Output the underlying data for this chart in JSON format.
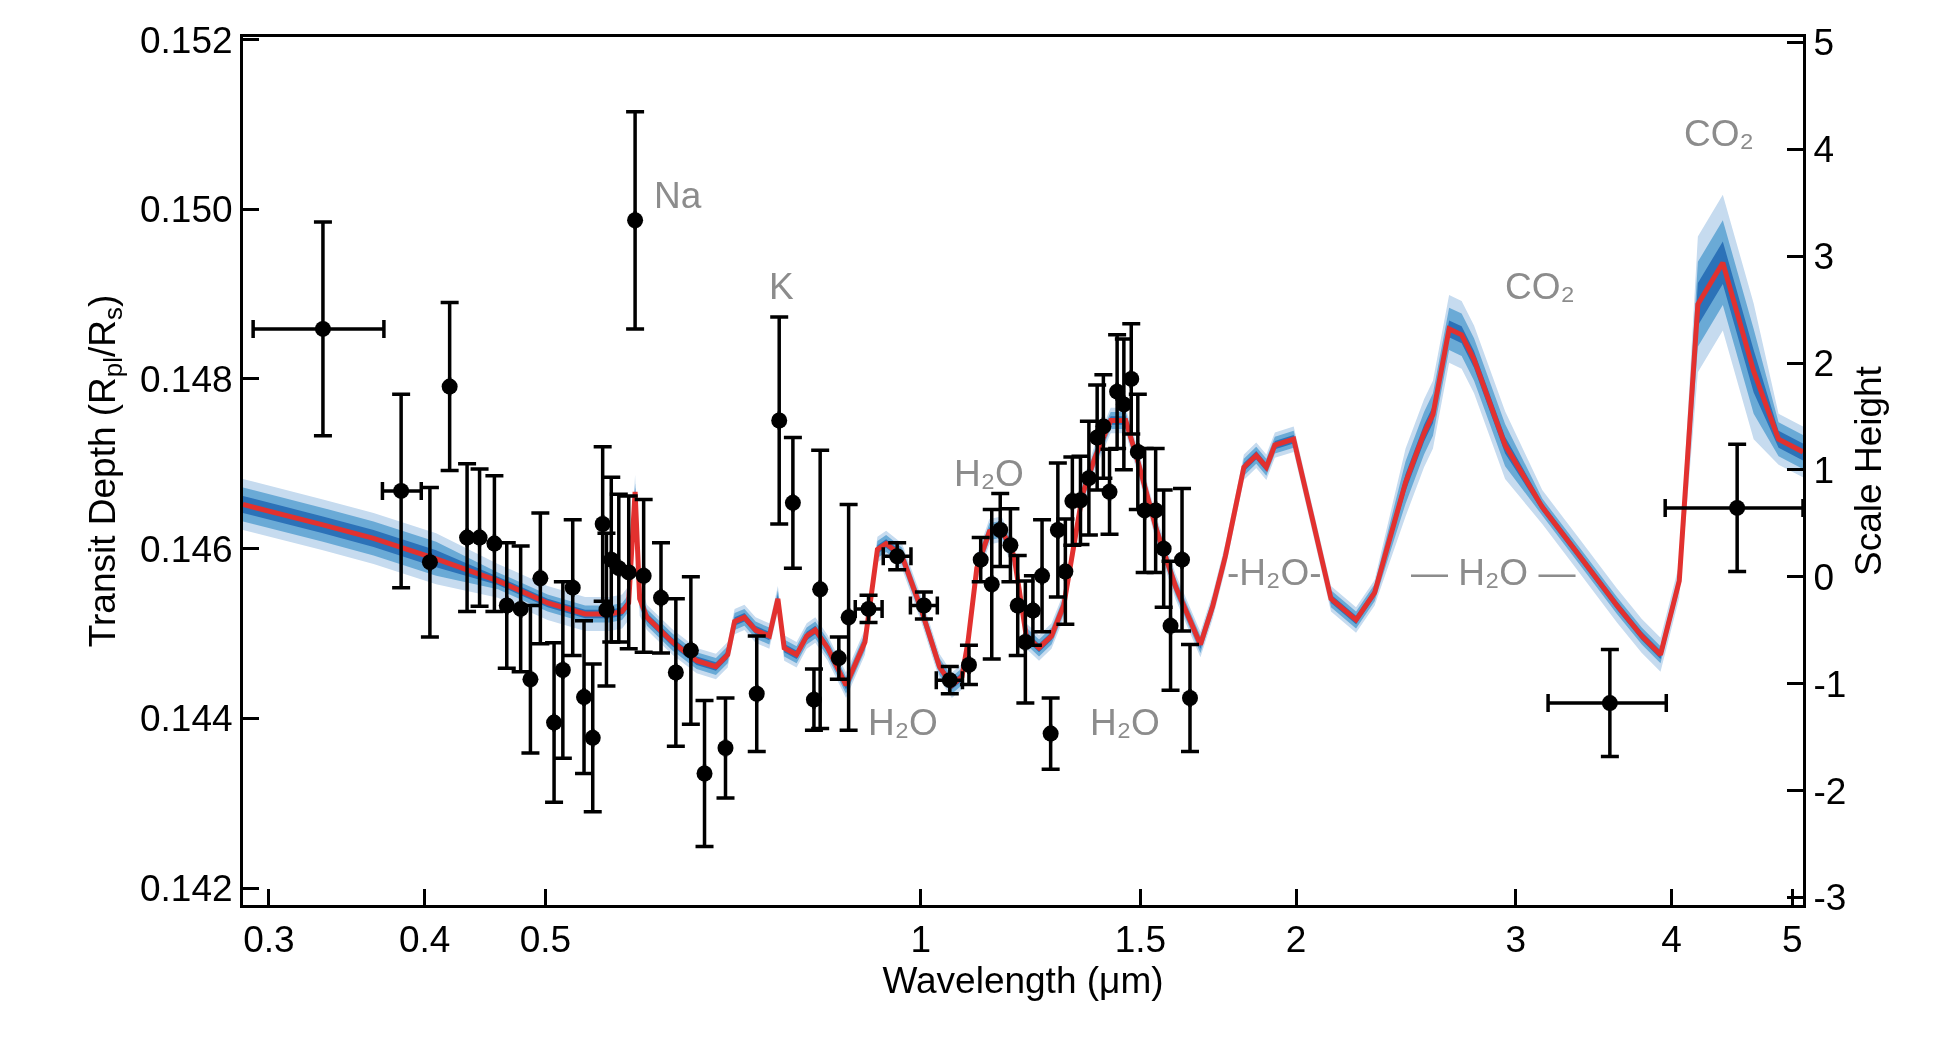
{
  "chart_data": {
    "type": "scatter",
    "xlabel": "Wavelength (μm)",
    "ylabel": "Transit Depth (R$_{pl}$/R$_{s}$)",
    "y2label": "Scale Height",
    "log": "x",
    "marker": "circle",
    "xlim": [
      0.286,
      5.1
    ],
    "xticks": [
      0.3,
      0.4,
      0.5,
      1,
      1.5,
      2,
      3,
      4,
      5
    ],
    "ylim": [
      0.1418,
      0.15203
    ],
    "yticks": [
      0.142,
      0.144,
      0.146,
      0.148,
      {
        "value": 0.15,
        "label": "0.150"
      },
      0.152
    ],
    "y2lim": [
      -3.07,
      5.05
    ],
    "y2ticks": [
      -3,
      -2,
      -1,
      0,
      1,
      2,
      3,
      4,
      5
    ],
    "x": [
      0.286,
      0.3315,
      0.364,
      0.4086,
      0.458,
      0.502,
      0.538,
      0.563,
      0.576,
      0.583,
      0.59,
      0.595,
      0.603,
      0.632,
      0.661,
      0.685,
      0.7,
      0.709,
      0.722,
      0.737,
      0.756,
      0.768,
      0.777,
      0.795,
      0.81,
      0.823,
      0.842,
      0.871,
      0.902,
      0.923,
      0.938,
      0.966,
      1.0,
      1.035,
      1.059,
      1.079,
      1.091,
      1.109,
      1.135,
      1.161,
      1.188,
      1.215,
      1.244,
      1.273,
      1.302,
      1.348,
      1.379,
      1.42,
      1.46,
      1.495,
      1.547,
      1.601,
      1.676,
      1.715,
      1.755,
      1.816,
      1.858,
      1.893,
      1.923,
      1.991,
      2.061,
      2.133,
      2.234,
      2.312,
      2.448,
      2.533,
      2.575,
      2.653,
      2.715,
      2.778,
      2.942,
      3.151,
      3.377,
      3.617,
      3.787,
      3.92,
      4.058,
      4.2,
      4.398,
      4.656,
      4.875,
      5.1
    ],
    "series": [
      {
        "type": "line",
        "color": "#c6dbef",
        "values": [
          null,
          null,
          null,
          null,
          null,
          null,
          null,
          null,
          null,
          null,
          null,
          null,
          null,
          null,
          null,
          null,
          null,
          null,
          null,
          null,
          null,
          null,
          null,
          null,
          null,
          null,
          null,
          null,
          null,
          null,
          null,
          null,
          null,
          null,
          null,
          null,
          null,
          null,
          null,
          null,
          null,
          null,
          null,
          null,
          null,
          null,
          null,
          null,
          null,
          null,
          null,
          null,
          null,
          null,
          null,
          null,
          null,
          null,
          null,
          null,
          null,
          null,
          null,
          null,
          null,
          null,
          null,
          null,
          null,
          null,
          null,
          null,
          null,
          null,
          null,
          null,
          null,
          null,
          null,
          null,
          null,
          null
        ],
        "lower": [
          0.14622,
          0.14598,
          0.14582,
          0.14558,
          0.14542,
          0.14516,
          0.14503,
          0.14503,
          0.14506,
          0.14516,
          0.14647,
          0.14521,
          0.14504,
          0.14475,
          0.14453,
          0.14446,
          0.1446,
          0.14499,
          0.14504,
          0.14489,
          0.14482,
          0.14526,
          0.14468,
          0.1446,
          0.14482,
          0.14489,
          0.14468,
          0.14424,
          0.14475,
          0.14584,
          0.14591,
          0.14576,
          0.14515,
          0.14446,
          0.14424,
          0.14434,
          0.14475,
          0.14562,
          0.14605,
          0.14608,
          0.14576,
          0.14482,
          0.14468,
          0.14482,
          0.14518,
          0.14649,
          0.14692,
          0.14736,
          0.14736,
          0.14685,
          0.14605,
          0.1454,
          0.14472,
          0.14518,
          0.14576,
          0.14681,
          0.14695,
          0.14681,
          0.14707,
          0.14714,
          0.1462,
          0.14526,
          0.14501,
          0.14533,
          0.14638,
          0.14696,
          0.14718,
          0.14819,
          0.14812,
          0.14783,
          0.14682,
          0.14629,
          0.14571,
          0.14513,
          0.14477,
          0.14455,
          0.14542,
          0.14808,
          0.14857,
          0.14729,
          0.14699,
          0.14684
        ],
        "upper": [
          0.14682,
          0.14658,
          0.14642,
          0.14618,
          0.14582,
          0.14556,
          0.14543,
          0.14543,
          0.14546,
          0.14556,
          0.14687,
          0.14561,
          0.14534,
          0.14505,
          0.14483,
          0.14476,
          0.1449,
          0.14529,
          0.14534,
          0.14519,
          0.14512,
          0.14556,
          0.14498,
          0.1449,
          0.14512,
          0.14519,
          0.14498,
          0.14454,
          0.14505,
          0.14614,
          0.14621,
          0.14606,
          0.14545,
          0.14476,
          0.14454,
          0.14464,
          0.14505,
          0.14592,
          0.14635,
          0.14638,
          0.14606,
          0.14512,
          0.14498,
          0.14512,
          0.14548,
          0.14679,
          0.14722,
          0.14766,
          0.14766,
          0.14715,
          0.14635,
          0.1457,
          0.14502,
          0.14548,
          0.14606,
          0.14711,
          0.14725,
          0.14711,
          0.14737,
          0.14744,
          0.1465,
          0.14556,
          0.14531,
          0.14563,
          0.14718,
          0.14776,
          0.14798,
          0.14899,
          0.14892,
          0.14863,
          0.14762,
          0.14669,
          0.14611,
          0.14553,
          0.14517,
          0.14495,
          0.14582,
          0.14968,
          0.15017,
          0.14889,
          0.14759,
          0.14744
        ]
      },
      {
        "type": "line",
        "color": "#6aaad6",
        "values": [
          null,
          null,
          null,
          null,
          null,
          null,
          null,
          null,
          null,
          null,
          null,
          null,
          null,
          null,
          null,
          null,
          null,
          null,
          null,
          null,
          null,
          null,
          null,
          null,
          null,
          null,
          null,
          null,
          null,
          null,
          null,
          null,
          null,
          null,
          null,
          null,
          null,
          null,
          null,
          null,
          null,
          null,
          null,
          null,
          null,
          null,
          null,
          null,
          null,
          null,
          null,
          null,
          null,
          null,
          null,
          null,
          null,
          null,
          null,
          null,
          null,
          null,
          null,
          null,
          null,
          null,
          null,
          null,
          null,
          null,
          null,
          null,
          null,
          null,
          null,
          null,
          null,
          null,
          null,
          null,
          null,
          null
        ],
        "lower": [
          0.14632,
          0.14608,
          0.14592,
          0.14568,
          0.14552,
          0.14526,
          0.14513,
          0.14513,
          0.14516,
          0.14526,
          0.14657,
          0.14531,
          0.14509,
          0.1448,
          0.14458,
          0.14451,
          0.14465,
          0.14504,
          0.14509,
          0.14494,
          0.14487,
          0.14531,
          0.14473,
          0.14465,
          0.14487,
          0.14494,
          0.14473,
          0.14429,
          0.1448,
          0.14589,
          0.14596,
          0.14581,
          0.1452,
          0.14451,
          0.14429,
          0.14439,
          0.1448,
          0.14567,
          0.1461,
          0.14613,
          0.14581,
          0.14487,
          0.14473,
          0.14487,
          0.14523,
          0.14654,
          0.14697,
          0.14741,
          0.14741,
          0.1469,
          0.1461,
          0.14545,
          0.14477,
          0.14523,
          0.14581,
          0.14686,
          0.147,
          0.14686,
          0.14712,
          0.14719,
          0.14625,
          0.14531,
          0.14506,
          0.14538,
          0.14653,
          0.14711,
          0.14733,
          0.14834,
          0.14827,
          0.14798,
          0.14697,
          0.14639,
          0.14581,
          0.14523,
          0.14487,
          0.14465,
          0.14552,
          0.14838,
          0.14887,
          0.14759,
          0.14709,
          0.14694
        ],
        "upper": [
          0.14672,
          0.14648,
          0.14632,
          0.14608,
          0.14572,
          0.14546,
          0.14533,
          0.14533,
          0.14536,
          0.14546,
          0.14677,
          0.14551,
          0.14529,
          0.145,
          0.14478,
          0.14471,
          0.14485,
          0.14524,
          0.14529,
          0.14514,
          0.14507,
          0.14551,
          0.14493,
          0.14485,
          0.14507,
          0.14514,
          0.14493,
          0.14449,
          0.145,
          0.14609,
          0.14616,
          0.14601,
          0.1454,
          0.14471,
          0.14449,
          0.14459,
          0.145,
          0.14587,
          0.1463,
          0.14633,
          0.14601,
          0.14507,
          0.14493,
          0.14507,
          0.14543,
          0.14674,
          0.14717,
          0.14761,
          0.14761,
          0.1471,
          0.1463,
          0.14565,
          0.14497,
          0.14543,
          0.14601,
          0.14706,
          0.1472,
          0.14706,
          0.14732,
          0.14739,
          0.14645,
          0.14551,
          0.14526,
          0.14558,
          0.14703,
          0.14761,
          0.14783,
          0.14884,
          0.14877,
          0.14848,
          0.14747,
          0.14659,
          0.14601,
          0.14543,
          0.14507,
          0.14485,
          0.14572,
          0.14938,
          0.14987,
          0.14859,
          0.14749,
          0.14734
        ]
      },
      {
        "type": "line",
        "color": "#2c72b8",
        "values": [
          null,
          null,
          null,
          null,
          null,
          null,
          null,
          null,
          null,
          null,
          null,
          null,
          null,
          null,
          null,
          null,
          null,
          null,
          null,
          null,
          null,
          null,
          null,
          null,
          null,
          null,
          null,
          null,
          null,
          null,
          null,
          null,
          null,
          null,
          null,
          null,
          null,
          null,
          null,
          null,
          null,
          null,
          null,
          null,
          null,
          null,
          null,
          null,
          null,
          null,
          null,
          null,
          null,
          null,
          null,
          null,
          null,
          null,
          null,
          null,
          null,
          null,
          null,
          null,
          null,
          null,
          null,
          null,
          null,
          null,
          null,
          null,
          null,
          null,
          null,
          null,
          null,
          null,
          null,
          null,
          null,
          null
        ],
        "lower": [
          0.14642,
          0.14618,
          0.14602,
          0.14578,
          0.14557,
          0.14531,
          0.14518,
          0.14518,
          0.14521,
          0.14531,
          0.14662,
          0.14536,
          0.14514,
          0.14485,
          0.14463,
          0.14456,
          0.1447,
          0.14509,
          0.14514,
          0.14499,
          0.14492,
          0.14536,
          0.14478,
          0.1447,
          0.14492,
          0.14499,
          0.14478,
          0.14434,
          0.14485,
          0.14594,
          0.14601,
          0.14586,
          0.14525,
          0.14456,
          0.14434,
          0.14444,
          0.14485,
          0.14572,
          0.14615,
          0.14618,
          0.14586,
          0.14492,
          0.14478,
          0.14492,
          0.14528,
          0.14659,
          0.14702,
          0.14746,
          0.14746,
          0.14695,
          0.14615,
          0.1455,
          0.14482,
          0.14528,
          0.14586,
          0.14691,
          0.14705,
          0.14691,
          0.14717,
          0.14724,
          0.1463,
          0.14536,
          0.14511,
          0.14543,
          0.14668,
          0.14726,
          0.14748,
          0.14849,
          0.14842,
          0.14813,
          0.14712,
          0.14644,
          0.14586,
          0.14528,
          0.14492,
          0.1447,
          0.14557,
          0.14863,
          0.14912,
          0.14784,
          0.14719,
          0.14704
        ],
        "upper": [
          0.14662,
          0.14638,
          0.14622,
          0.14598,
          0.14567,
          0.14541,
          0.14528,
          0.14528,
          0.14531,
          0.14541,
          0.14672,
          0.14546,
          0.14524,
          0.14495,
          0.14473,
          0.14466,
          0.1448,
          0.14519,
          0.14524,
          0.14509,
          0.14502,
          0.14546,
          0.14488,
          0.1448,
          0.14502,
          0.14509,
          0.14488,
          0.14444,
          0.14495,
          0.14604,
          0.14611,
          0.14596,
          0.14535,
          0.14466,
          0.14444,
          0.14454,
          0.14495,
          0.14582,
          0.14625,
          0.14628,
          0.14596,
          0.14502,
          0.14488,
          0.14502,
          0.14538,
          0.14669,
          0.14712,
          0.14756,
          0.14756,
          0.14705,
          0.14625,
          0.1456,
          0.14492,
          0.14538,
          0.14596,
          0.14701,
          0.14715,
          0.14701,
          0.14727,
          0.14734,
          0.1464,
          0.14546,
          0.14521,
          0.14553,
          0.14688,
          0.14746,
          0.14768,
          0.14869,
          0.14862,
          0.14833,
          0.14732,
          0.14654,
          0.14596,
          0.14538,
          0.14502,
          0.1448,
          0.14567,
          0.14913,
          0.14962,
          0.14834,
          0.14739,
          0.14724
        ]
      },
      {
        "type": "line",
        "color": "#e2312f",
        "line_style": "solid",
        "marker": "none",
        "values": [
          0.14652,
          0.14628,
          0.14612,
          0.14588,
          0.14562,
          0.14536,
          0.14523,
          0.14523,
          0.14526,
          0.14536,
          0.14667,
          0.14541,
          0.14519,
          0.1449,
          0.14468,
          0.14461,
          0.14475,
          0.14514,
          0.14519,
          0.14504,
          0.14497,
          0.14541,
          0.14483,
          0.14475,
          0.14497,
          0.14504,
          0.14483,
          0.14439,
          0.1449,
          0.14599,
          0.14606,
          0.14591,
          0.1453,
          0.14461,
          0.14439,
          0.14449,
          0.1449,
          0.14577,
          0.1462,
          0.14623,
          0.14591,
          0.14497,
          0.14483,
          0.14497,
          0.14533,
          0.14664,
          0.14707,
          0.14751,
          0.14751,
          0.147,
          0.1462,
          0.14555,
          0.14487,
          0.14533,
          0.14591,
          0.14696,
          0.1471,
          0.14696,
          0.14722,
          0.14729,
          0.14635,
          0.14541,
          0.14516,
          0.14548,
          0.14678,
          0.14736,
          0.14758,
          0.14859,
          0.14852,
          0.14823,
          0.14722,
          0.14649,
          0.14591,
          0.14533,
          0.14497,
          0.14475,
          0.14562,
          0.14888,
          0.14937,
          0.14809,
          0.14729,
          0.14714
        ]
      },
      {
        "color": "#000000",
        "x": [
          0.3315,
          0.383,
          0.4039,
          0.4189,
          0.4326,
          0.4427,
          0.455,
          0.4655,
          0.4776,
          0.4863,
          0.4953,
          0.508,
          0.5163,
          0.5258,
          0.5369,
          0.5456,
          0.5557,
          0.5596,
          0.5646,
          0.5725,
          0.5831,
          0.59,
          0.5994,
          0.6189,
          0.6361,
          0.654,
          0.6707,
          0.6972,
          0.7386,
          0.7699,
          0.7896,
          0.8209,
          0.8304,
          0.8595,
          0.8752,
          0.908,
          0.9573,
          1.0057,
          1.055,
          1.093,
          1.117,
          1.14,
          1.158,
          1.18,
          1.196,
          1.213,
          1.23,
          1.251,
          1.271,
          1.288,
          1.306,
          1.323,
          1.343,
          1.364,
          1.385,
          1.401,
          1.417,
          1.437,
          1.455,
          1.475,
          1.493,
          1.512,
          1.543,
          1.566,
          1.586,
          1.62,
          1.644,
          3.57,
          4.516
        ],
        "values": [
          0.14859,
          0.14668,
          0.14584,
          0.14791,
          0.14613,
          0.14613,
          0.14606,
          0.14533,
          0.14529,
          0.14446,
          0.14565,
          0.14395,
          0.14457,
          0.14554,
          0.14425,
          0.14377,
          0.14629,
          0.14528,
          0.14587,
          0.14577,
          0.14572,
          0.14987,
          0.14568,
          0.14542,
          0.14454,
          0.1448,
          0.14335,
          0.14365,
          0.14429,
          0.14751,
          0.14654,
          0.14422,
          0.14552,
          0.14471,
          0.14519,
          0.14529,
          0.14591,
          0.14533,
          0.14445,
          0.14463,
          0.14587,
          0.14558,
          0.14622,
          0.14604,
          0.14533,
          0.1449,
          0.14527,
          0.14568,
          0.14382,
          0.14622,
          0.14573,
          0.14656,
          0.14657,
          0.14683,
          0.14731,
          0.14744,
          0.14667,
          0.14785,
          0.1477,
          0.148,
          0.14714,
          0.14645,
          0.14645,
          0.146,
          0.14509,
          0.14587,
          0.14424,
          0.14418,
          0.14648
        ],
        "errors": [
          0.00126,
          0.00114,
          0.00088,
          0.00099,
          0.00087,
          0.00081,
          0.0008,
          0.00074,
          0.00074,
          0.00087,
          0.00077,
          0.00094,
          0.00104,
          0.0008,
          0.0009,
          0.00087,
          0.00091,
          0.0009,
          0.00097,
          0.00087,
          0.0009,
          0.00128,
          0.0009,
          0.00065,
          0.00087,
          0.00087,
          0.00086,
          0.00059,
          0.00068,
          0.00122,
          0.00077,
          0.00036,
          0.00164,
          0.00025,
          0.00133,
          0.00016,
          0.00016,
          0.00016,
          0.00016,
          0.00023,
          0.00026,
          0.00088,
          0.00043,
          0.00043,
          0.00059,
          0.00072,
          0.00041,
          0.00066,
          0.00042,
          0.00079,
          0.00062,
          0.00052,
          0.00052,
          0.00067,
          0.00062,
          0.00061,
          0.0005,
          0.00067,
          0.00077,
          0.00065,
          0.00068,
          0.00073,
          0.00073,
          0.00069,
          0.00076,
          0.00084,
          0.00063,
          0.00063,
          0.00075
        ],
        "xerrors": [
          [
            0.2914,
            0.371
          ],
          [
            0.37,
            0.3975
          ],
          null,
          null,
          null,
          null,
          null,
          null,
          null,
          null,
          null,
          null,
          null,
          null,
          null,
          null,
          null,
          null,
          null,
          null,
          null,
          null,
          null,
          null,
          null,
          null,
          null,
          null,
          null,
          null,
          null,
          null,
          null,
          null,
          null,
          [
            0.886,
            0.931
          ],
          [
            0.933,
            0.982
          ],
          [
            0.981,
            1.031
          ],
          [
            1.029,
            1.08
          ],
          null,
          null,
          null,
          null,
          null,
          null,
          null,
          null,
          null,
          null,
          null,
          null,
          null,
          null,
          null,
          null,
          null,
          null,
          null,
          null,
          null,
          null,
          null,
          null,
          null,
          null,
          null,
          null,
          [
            3.185,
            3.962
          ],
          [
            3.954,
            5.1
          ]
        ]
      }
    ],
    "annotations": [
      "Na",
      "K",
      "H₂O",
      "H₂O",
      "H₂O",
      "-H₂O-",
      "— H₂O —",
      "CO₂",
      "CO₂"
    ]
  }
}
